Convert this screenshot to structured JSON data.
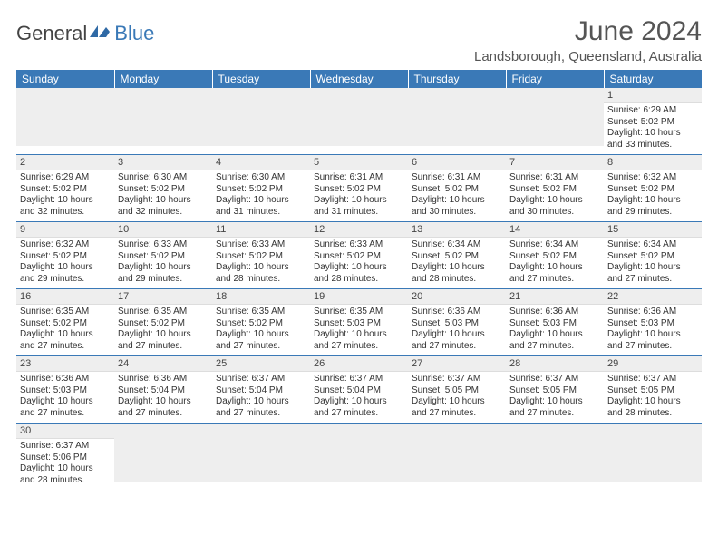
{
  "brand": {
    "general": "General",
    "blue": "Blue"
  },
  "title": "June 2024",
  "location": "Landsborough, Queensland, Australia",
  "headers": [
    "Sunday",
    "Monday",
    "Tuesday",
    "Wednesday",
    "Thursday",
    "Friday",
    "Saturday"
  ],
  "colors": {
    "header_bg": "#3a79b7",
    "daynum_bg": "#eeeeee"
  },
  "weeks": [
    [
      null,
      null,
      null,
      null,
      null,
      null,
      {
        "n": "1",
        "sr": "6:29 AM",
        "ss": "5:02 PM",
        "d1": "10 hours",
        "d2": "and 33 minutes."
      }
    ],
    [
      {
        "n": "2",
        "sr": "6:29 AM",
        "ss": "5:02 PM",
        "d1": "10 hours",
        "d2": "and 32 minutes."
      },
      {
        "n": "3",
        "sr": "6:30 AM",
        "ss": "5:02 PM",
        "d1": "10 hours",
        "d2": "and 32 minutes."
      },
      {
        "n": "4",
        "sr": "6:30 AM",
        "ss": "5:02 PM",
        "d1": "10 hours",
        "d2": "and 31 minutes."
      },
      {
        "n": "5",
        "sr": "6:31 AM",
        "ss": "5:02 PM",
        "d1": "10 hours",
        "d2": "and 31 minutes."
      },
      {
        "n": "6",
        "sr": "6:31 AM",
        "ss": "5:02 PM",
        "d1": "10 hours",
        "d2": "and 30 minutes."
      },
      {
        "n": "7",
        "sr": "6:31 AM",
        "ss": "5:02 PM",
        "d1": "10 hours",
        "d2": "and 30 minutes."
      },
      {
        "n": "8",
        "sr": "6:32 AM",
        "ss": "5:02 PM",
        "d1": "10 hours",
        "d2": "and 29 minutes."
      }
    ],
    [
      {
        "n": "9",
        "sr": "6:32 AM",
        "ss": "5:02 PM",
        "d1": "10 hours",
        "d2": "and 29 minutes."
      },
      {
        "n": "10",
        "sr": "6:33 AM",
        "ss": "5:02 PM",
        "d1": "10 hours",
        "d2": "and 29 minutes."
      },
      {
        "n": "11",
        "sr": "6:33 AM",
        "ss": "5:02 PM",
        "d1": "10 hours",
        "d2": "and 28 minutes."
      },
      {
        "n": "12",
        "sr": "6:33 AM",
        "ss": "5:02 PM",
        "d1": "10 hours",
        "d2": "and 28 minutes."
      },
      {
        "n": "13",
        "sr": "6:34 AM",
        "ss": "5:02 PM",
        "d1": "10 hours",
        "d2": "and 28 minutes."
      },
      {
        "n": "14",
        "sr": "6:34 AM",
        "ss": "5:02 PM",
        "d1": "10 hours",
        "d2": "and 27 minutes."
      },
      {
        "n": "15",
        "sr": "6:34 AM",
        "ss": "5:02 PM",
        "d1": "10 hours",
        "d2": "and 27 minutes."
      }
    ],
    [
      {
        "n": "16",
        "sr": "6:35 AM",
        "ss": "5:02 PM",
        "d1": "10 hours",
        "d2": "and 27 minutes."
      },
      {
        "n": "17",
        "sr": "6:35 AM",
        "ss": "5:02 PM",
        "d1": "10 hours",
        "d2": "and 27 minutes."
      },
      {
        "n": "18",
        "sr": "6:35 AM",
        "ss": "5:02 PM",
        "d1": "10 hours",
        "d2": "and 27 minutes."
      },
      {
        "n": "19",
        "sr": "6:35 AM",
        "ss": "5:03 PM",
        "d1": "10 hours",
        "d2": "and 27 minutes."
      },
      {
        "n": "20",
        "sr": "6:36 AM",
        "ss": "5:03 PM",
        "d1": "10 hours",
        "d2": "and 27 minutes."
      },
      {
        "n": "21",
        "sr": "6:36 AM",
        "ss": "5:03 PM",
        "d1": "10 hours",
        "d2": "and 27 minutes."
      },
      {
        "n": "22",
        "sr": "6:36 AM",
        "ss": "5:03 PM",
        "d1": "10 hours",
        "d2": "and 27 minutes."
      }
    ],
    [
      {
        "n": "23",
        "sr": "6:36 AM",
        "ss": "5:03 PM",
        "d1": "10 hours",
        "d2": "and 27 minutes."
      },
      {
        "n": "24",
        "sr": "6:36 AM",
        "ss": "5:04 PM",
        "d1": "10 hours",
        "d2": "and 27 minutes."
      },
      {
        "n": "25",
        "sr": "6:37 AM",
        "ss": "5:04 PM",
        "d1": "10 hours",
        "d2": "and 27 minutes."
      },
      {
        "n": "26",
        "sr": "6:37 AM",
        "ss": "5:04 PM",
        "d1": "10 hours",
        "d2": "and 27 minutes."
      },
      {
        "n": "27",
        "sr": "6:37 AM",
        "ss": "5:05 PM",
        "d1": "10 hours",
        "d2": "and 27 minutes."
      },
      {
        "n": "28",
        "sr": "6:37 AM",
        "ss": "5:05 PM",
        "d1": "10 hours",
        "d2": "and 27 minutes."
      },
      {
        "n": "29",
        "sr": "6:37 AM",
        "ss": "5:05 PM",
        "d1": "10 hours",
        "d2": "and 28 minutes."
      }
    ],
    [
      {
        "n": "30",
        "sr": "6:37 AM",
        "ss": "5:06 PM",
        "d1": "10 hours",
        "d2": "and 28 minutes."
      },
      null,
      null,
      null,
      null,
      null,
      null
    ]
  ],
  "labels": {
    "sunrise": "Sunrise: ",
    "sunset": "Sunset: ",
    "daylight": "Daylight: "
  }
}
